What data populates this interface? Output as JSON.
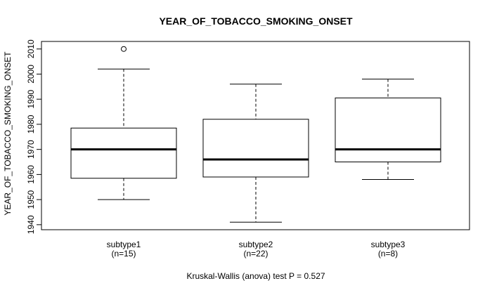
{
  "chart_data": {
    "type": "boxplot",
    "title": "YEAR_OF_TOBACCO_SMOKING_ONSET",
    "ylabel": "YEAR_OF_TOBACCO_SMOKING_ONSET",
    "xlabel": "",
    "ylim": [
      1938,
      2013
    ],
    "yticks": [
      1940,
      1950,
      1960,
      1970,
      1980,
      1990,
      2000,
      2010
    ],
    "categories": [
      "subtype1",
      "subtype2",
      "subtype3"
    ],
    "counts": [
      "(n=15)",
      "(n=22)",
      "(n=8)"
    ],
    "boxes": [
      {
        "name": "subtype1",
        "whisker_low": 1950,
        "q1": 1958.5,
        "median": 1970,
        "q3": 1978.5,
        "whisker_high": 2002,
        "outliers": [
          2010
        ]
      },
      {
        "name": "subtype2",
        "whisker_low": 1941,
        "q1": 1959,
        "median": 1966,
        "q3": 1982,
        "whisker_high": 1996,
        "outliers": []
      },
      {
        "name": "subtype3",
        "whisker_low": 1958,
        "q1": 1965,
        "median": 1970,
        "q3": 1990.5,
        "whisker_high": 1998,
        "outliers": []
      }
    ],
    "footer": "Kruskal-Wallis (anova) test P = 0.527"
  }
}
